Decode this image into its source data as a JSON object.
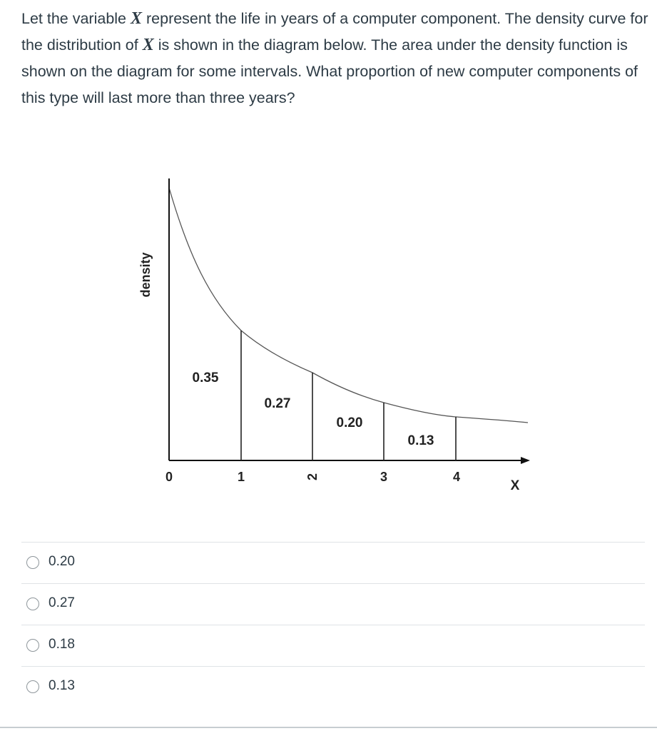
{
  "question": {
    "part1": "Let the variable ",
    "var1": "X",
    "part2": " represent the life in years of a computer component. The density curve for the distribution of ",
    "var2": "X",
    "part3": " is shown in the diagram below. The area under the density function is shown on the diagram for some intervals. What proportion of new computer components of this type will last more than three years?"
  },
  "diagram": {
    "y_axis_label": "density",
    "x_axis_label": "X",
    "x_ticks": [
      "0",
      "1",
      "2",
      "3",
      "4"
    ],
    "areas": [
      {
        "interval": [
          0,
          1
        ],
        "label": "0.35"
      },
      {
        "interval": [
          1,
          2
        ],
        "label": "0.27"
      },
      {
        "interval": [
          2,
          3
        ],
        "label": "0.20"
      },
      {
        "interval": [
          3,
          4
        ],
        "label": "0.13"
      }
    ]
  },
  "answers": [
    {
      "label": "0.20",
      "selected": false
    },
    {
      "label": "0.27",
      "selected": false
    },
    {
      "label": "0.18",
      "selected": false
    },
    {
      "label": "0.13",
      "selected": false
    }
  ]
}
